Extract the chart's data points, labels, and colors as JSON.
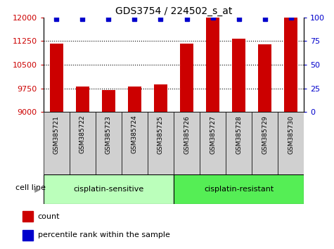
{
  "title": "GDS3754 / 224502_s_at",
  "samples": [
    "GSM385721",
    "GSM385722",
    "GSM385723",
    "GSM385724",
    "GSM385725",
    "GSM385726",
    "GSM385727",
    "GSM385728",
    "GSM385729",
    "GSM385730"
  ],
  "counts": [
    11180,
    9820,
    9700,
    9800,
    9880,
    11180,
    11990,
    11320,
    11140,
    11990
  ],
  "percentile_ranks": [
    98,
    98,
    98,
    98,
    98,
    98,
    100,
    98,
    98,
    100
  ],
  "bar_color": "#cc0000",
  "dot_color": "#0000cc",
  "ylim_left": [
    9000,
    12000
  ],
  "ylim_right": [
    0,
    100
  ],
  "yticks_left": [
    9000,
    9750,
    10500,
    11250,
    12000
  ],
  "yticks_right": [
    0,
    25,
    50,
    75,
    100
  ],
  "group1_label": "cisplatin-sensitive",
  "group2_label": "cisplatin-resistant",
  "group1_count": 5,
  "group2_count": 5,
  "cell_line_label": "cell line",
  "legend_count_label": "count",
  "legend_percentile_label": "percentile rank within the sample",
  "sample_bg_color": "#d0d0d0",
  "group_bg_sensitive": "#bbffbb",
  "group_bg_resistant": "#55ee55",
  "plot_bg": "#ffffff",
  "baseline": 9000
}
